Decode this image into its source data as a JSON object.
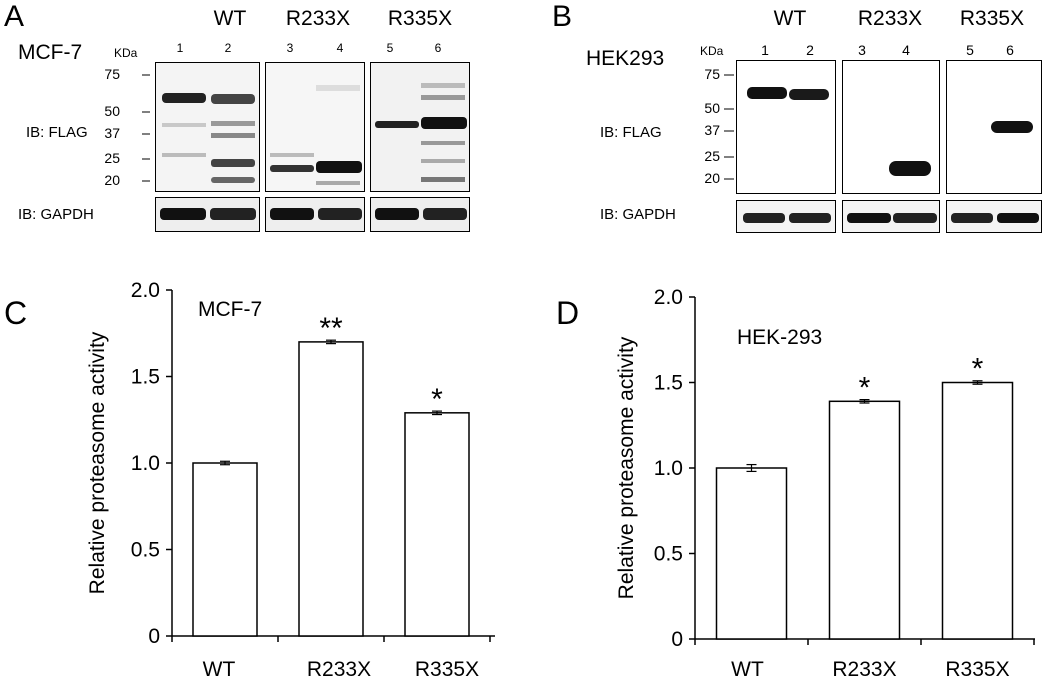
{
  "panel_a": {
    "letter": "A",
    "cell_line": "MCF-7",
    "groups": [
      "WT",
      "R233X",
      "R335X"
    ],
    "lanes": [
      "1",
      "2",
      "3",
      "4",
      "5",
      "6"
    ],
    "mw_unit": "KDa",
    "mw_markers": [
      "75",
      "50",
      "37",
      "25",
      "20"
    ],
    "ib_top": "IB: FLAG",
    "ib_bottom": "IB: GAPDH"
  },
  "panel_b": {
    "letter": "B",
    "cell_line": "HEK293",
    "groups": [
      "WT",
      "R233X",
      "R335X"
    ],
    "lanes": [
      "1",
      "2",
      "3",
      "4",
      "5",
      "6"
    ],
    "mw_unit": "KDa",
    "mw_markers": [
      "75",
      "50",
      "37",
      "25",
      "20"
    ],
    "ib_top": "IB: FLAG",
    "ib_bottom": "IB: GAPDH"
  },
  "chart_data": [
    {
      "type": "bar",
      "panel": "C",
      "title": "MCF-7",
      "ylabel": "Relative proteasome activity",
      "categories": [
        "WT",
        "R233X",
        "R335X"
      ],
      "values": [
        1.0,
        1.7,
        1.29
      ],
      "errors": [
        0.01,
        0.01,
        0.01
      ],
      "significance": [
        "",
        "**",
        "*"
      ],
      "ylim": [
        0,
        2.0
      ],
      "yticks": [
        "0",
        "0.5",
        "1.0",
        "1.5",
        "2.0"
      ],
      "ytick_values": [
        0,
        0.5,
        1.0,
        1.5,
        2.0
      ]
    },
    {
      "type": "bar",
      "panel": "D",
      "title": "HEK-293",
      "ylabel": "Relative proteasome activity",
      "categories": [
        "WT",
        "R233X",
        "R335X"
      ],
      "values": [
        1.0,
        1.39,
        1.5
      ],
      "errors": [
        0.02,
        0.01,
        0.01
      ],
      "significance": [
        "",
        "*",
        "*"
      ],
      "ylim": [
        0,
        2.0
      ],
      "yticks": [
        "0",
        "0.5",
        "1.0",
        "1.5",
        "2.0"
      ],
      "ytick_values": [
        0,
        0.5,
        1.0,
        1.5,
        2.0
      ]
    }
  ]
}
